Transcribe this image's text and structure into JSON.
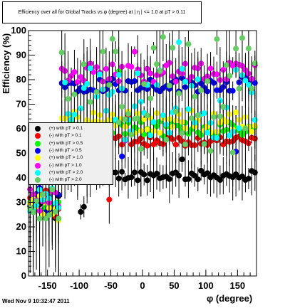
{
  "chart_data": {
    "type": "scatter",
    "title": "Efficiency over all for Global Tracks vs φ (degree) at | η | <= 1.0 at pT > 0.11",
    "xlabel": "φ (degree)",
    "ylabel": "Efficiency (%)",
    "xlim": [
      -180,
      180
    ],
    "ylim": [
      0,
      100
    ],
    "x_ticks": [
      "-150",
      "-100",
      "-50",
      "0",
      "50",
      "100",
      "150"
    ],
    "x_tick_values": [
      -150,
      -100,
      -50,
      0,
      50,
      100,
      150
    ],
    "y_ticks": [
      "0",
      "10",
      "20",
      "30",
      "40",
      "50",
      "60",
      "70",
      "80",
      "90",
      "100"
    ],
    "y_tick_values": [
      0,
      10,
      20,
      30,
      40,
      50,
      60,
      70,
      80,
      90,
      100
    ],
    "legend_position": "left-middle",
    "series": [
      {
        "name": "(+) with pT > 0.1",
        "color": "#000000",
        "center_right": 41,
        "center_left": 41,
        "low_region": 28,
        "spread": 2
      },
      {
        "name": "(-) with pT > 0.1",
        "color": "#ff0000",
        "center_right": 55,
        "center_left": 55,
        "low_region": 29,
        "spread": 2
      },
      {
        "name": "(+) with pT > 0.5",
        "color": "#00ff00",
        "center_right": 60,
        "center_left": 60,
        "low_region": 30,
        "spread": 3
      },
      {
        "name": "(-) with pT > 0.5",
        "color": "#0000ff",
        "center_right": 78,
        "center_left": 78,
        "low_region": 31,
        "spread": 3
      },
      {
        "name": "(+) with pT > 1.0",
        "color": "#ffff00",
        "center_right": 63,
        "center_left": 63,
        "low_region": 29,
        "spread": 5
      },
      {
        "name": "(-) with pT > 1.0",
        "color": "#ff00ff",
        "center_right": 83,
        "center_left": 83,
        "low_region": 33,
        "spread": 4
      },
      {
        "name": "(+) with pT > 2.0",
        "color": "#00ffff",
        "center_right": 70,
        "center_left": 70,
        "low_region": 30,
        "spread": 15
      },
      {
        "name": "(-) with pT > 2.0",
        "color": "#66cc66",
        "center_right": 75,
        "center_left": 75,
        "low_region": 28,
        "spread": 25
      }
    ]
  },
  "timestamp": "Wed Nov  9 10:32:47 2011"
}
